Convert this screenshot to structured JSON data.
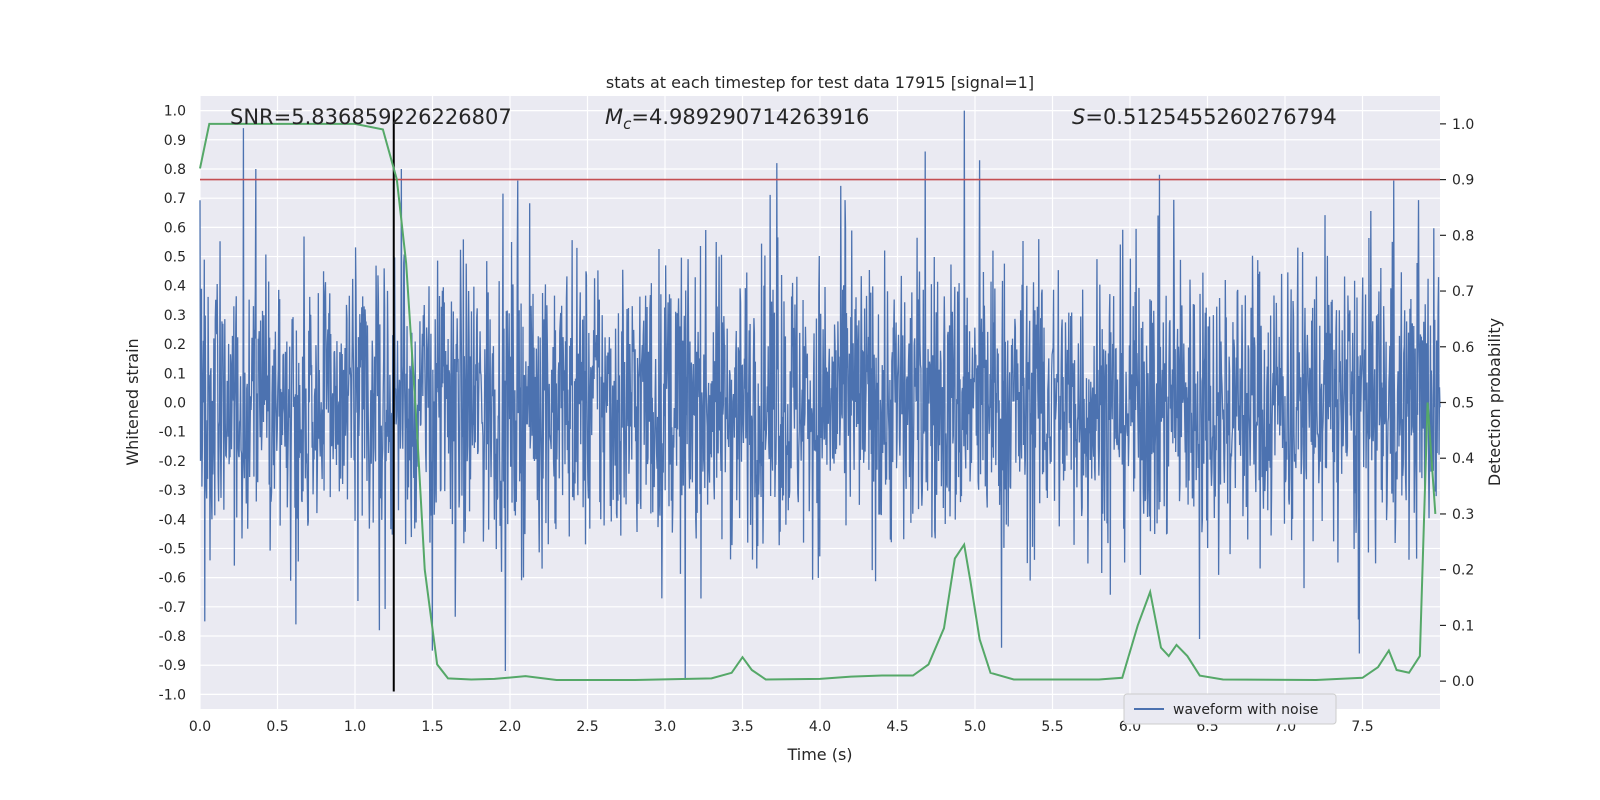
{
  "chart_data": {
    "type": "line",
    "title": "stats at each timestep for test data 17915 [signal=1]",
    "xlabel": "Time (s)",
    "ylabel": "Whitened strain",
    "y2label": "Detection probability",
    "xlim": [
      0.0,
      8.0
    ],
    "ylim": [
      -1.05,
      1.05
    ],
    "y2lim": [
      -0.05,
      1.05
    ],
    "x_ticks": [
      "0.0",
      "0.5",
      "1.0",
      "1.5",
      "2.0",
      "2.5",
      "3.0",
      "3.5",
      "4.0",
      "4.5",
      "5.0",
      "5.5",
      "6.0",
      "6.5",
      "7.0",
      "7.5"
    ],
    "y_ticks": [
      "1.0",
      "0.9",
      "0.8",
      "0.7",
      "0.6",
      "0.5",
      "0.4",
      "0.3",
      "0.2",
      "0.1",
      "0.0",
      "-0.1",
      "-0.2",
      "-0.3",
      "-0.4",
      "-0.5",
      "-0.6",
      "-0.7",
      "-0.8",
      "-0.9",
      "-1.0"
    ],
    "y2_ticks": [
      "1.0",
      "0.9",
      "0.8",
      "0.7",
      "0.6",
      "0.5",
      "0.4",
      "0.3",
      "0.2",
      "0.1",
      "0.0"
    ],
    "annotations": {
      "snr": "SNR=5.836859226226807",
      "mc_symbol": "M",
      "mc_sub": "c",
      "mc_value": "=4.989290714263916",
      "s_symbol": "S",
      "s_value": "=0.5125455260276794"
    },
    "threshold": {
      "axis": "y2",
      "value": 0.9
    },
    "marker_time": 1.25,
    "colors": {
      "waveform": "#4c72b0",
      "probability": "#55a868",
      "threshold": "#c44e52",
      "marker": "#000000",
      "plot_bg": "#eaeaf2",
      "grid": "#ffffff"
    },
    "legend": {
      "entries": [
        "waveform with noise"
      ],
      "position": "lower-right"
    },
    "series": [
      {
        "name": "waveform with noise",
        "axis": "y",
        "note": "dense noise, amplitude envelope about +/-0.4 with spikes up to about +/-0.95",
        "spikes": [
          [
            0.03,
            -0.75
          ],
          [
            0.28,
            0.94
          ],
          [
            0.36,
            0.8
          ],
          [
            0.62,
            -0.76
          ],
          [
            1.02,
            -0.68
          ],
          [
            1.3,
            0.8
          ],
          [
            1.5,
            -0.85
          ],
          [
            1.97,
            -0.92
          ],
          [
            3.13,
            -0.95
          ],
          [
            3.72,
            0.82
          ],
          [
            4.68,
            0.86
          ],
          [
            4.93,
            1.0
          ],
          [
            5.03,
            0.83
          ],
          [
            5.17,
            -0.84
          ],
          [
            6.45,
            -0.81
          ],
          [
            7.48,
            -0.86
          ],
          [
            7.7,
            0.76
          ]
        ]
      },
      {
        "name": "detection probability",
        "axis": "y2",
        "points": [
          [
            0.0,
            0.92
          ],
          [
            0.06,
            1.0
          ],
          [
            0.5,
            1.0
          ],
          [
            1.0,
            1.0
          ],
          [
            1.18,
            0.99
          ],
          [
            1.27,
            0.9
          ],
          [
            1.33,
            0.75
          ],
          [
            1.4,
            0.45
          ],
          [
            1.45,
            0.2
          ],
          [
            1.53,
            0.03
          ],
          [
            1.6,
            0.005
          ],
          [
            1.75,
            0.003
          ],
          [
            1.9,
            0.004
          ],
          [
            2.1,
            0.009
          ],
          [
            2.3,
            0.002
          ],
          [
            2.8,
            0.002
          ],
          [
            3.3,
            0.005
          ],
          [
            3.43,
            0.015
          ],
          [
            3.5,
            0.043
          ],
          [
            3.56,
            0.02
          ],
          [
            3.65,
            0.003
          ],
          [
            4.0,
            0.004
          ],
          [
            4.2,
            0.008
          ],
          [
            4.4,
            0.01
          ],
          [
            4.6,
            0.01
          ],
          [
            4.7,
            0.03
          ],
          [
            4.8,
            0.095
          ],
          [
            4.87,
            0.22
          ],
          [
            4.93,
            0.245
          ],
          [
            4.97,
            0.18
          ],
          [
            5.03,
            0.075
          ],
          [
            5.1,
            0.015
          ],
          [
            5.25,
            0.003
          ],
          [
            5.8,
            0.003
          ],
          [
            5.95,
            0.006
          ],
          [
            6.05,
            0.1
          ],
          [
            6.13,
            0.16
          ],
          [
            6.2,
            0.06
          ],
          [
            6.25,
            0.045
          ],
          [
            6.3,
            0.065
          ],
          [
            6.37,
            0.045
          ],
          [
            6.45,
            0.01
          ],
          [
            6.6,
            0.003
          ],
          [
            7.2,
            0.002
          ],
          [
            7.5,
            0.006
          ],
          [
            7.6,
            0.025
          ],
          [
            7.67,
            0.055
          ],
          [
            7.72,
            0.02
          ],
          [
            7.8,
            0.015
          ],
          [
            7.87,
            0.045
          ],
          [
            7.92,
            0.5
          ],
          [
            7.97,
            0.3
          ]
        ]
      }
    ]
  }
}
